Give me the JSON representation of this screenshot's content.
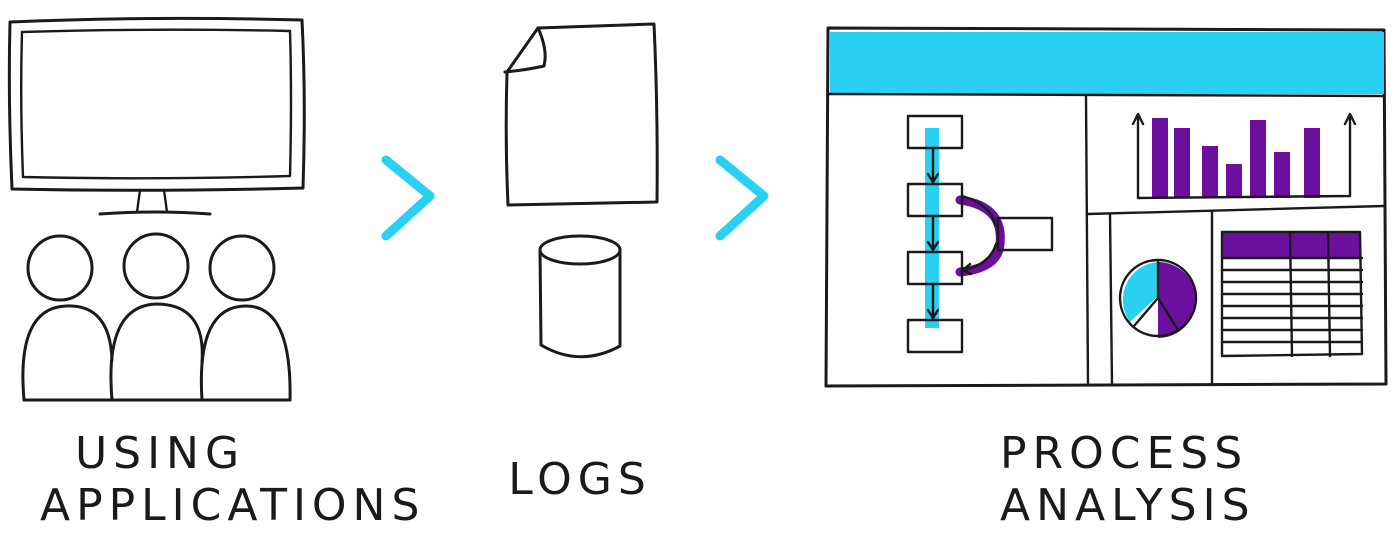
{
  "colors": {
    "accent_cyan": "#2ad0f2",
    "accent_purple": "#6a0f9e",
    "ink": "#1a1a1a"
  },
  "steps": [
    {
      "icon": "monitor-with-users-icon",
      "caption_lines": [
        "USING",
        "APPLICATIONS"
      ]
    },
    {
      "icon": "log-file-and-database-icon",
      "caption_lines": [
        "LOGS"
      ]
    },
    {
      "icon": "process-analysis-dashboard-icon",
      "caption_lines": [
        "PROCESS",
        "ANALYSIS"
      ]
    }
  ],
  "connectors": [
    "chevron-right-icon",
    "chevron-right-icon"
  ]
}
